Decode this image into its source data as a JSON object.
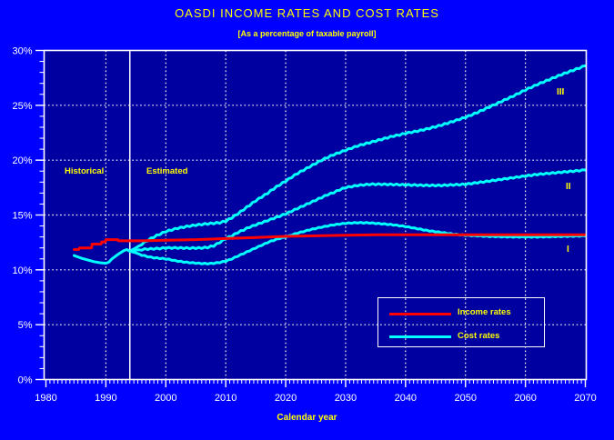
{
  "title": "OASDI  INCOME RATES AND COST  RATES",
  "subtitle": "[As a  percentage of taxable payroll]",
  "xlabel": "Calendar year",
  "annotations": {
    "historical": "Historical",
    "estimated": "Estimated",
    "boundary_year": 1994,
    "alt1": "I",
    "alt2": "II",
    "alt3": "III"
  },
  "legend": {
    "income": "Income rates",
    "cost": "Cost rates"
  },
  "colors": {
    "background": "#0000FF",
    "plot_bg": "#0000A0",
    "grid": "#FFFFFF",
    "axis": "#FFFFFF",
    "tick_text": "#FFFFFF",
    "accent_text": "#FFFF00",
    "income": "#FF0000",
    "cost": "#00FFFF"
  },
  "chart_data": {
    "type": "line",
    "title": "OASDI  INCOME RATES AND COST  RATES",
    "subtitle": "[As a  percentage of taxable payroll]",
    "xlabel": "Calendar year",
    "ylabel": "",
    "xlim": [
      1980,
      2070
    ],
    "ylim": [
      0,
      30
    ],
    "grid": true,
    "legend_position": "lower-right-inside",
    "x_ticks": [
      1980,
      1990,
      2000,
      2010,
      2020,
      2030,
      2040,
      2050,
      2060,
      2070
    ],
    "x_tick_labels": [
      "1980",
      "1990",
      "2000",
      "2010",
      "2020",
      "2030",
      "2040",
      "2050",
      "2060",
      "2070"
    ],
    "x_minor_step": 0.6667,
    "y_ticks": [
      0,
      5,
      10,
      15,
      20,
      25,
      30
    ],
    "y_tick_labels": [
      "0%",
      "5%",
      "10%",
      "15%",
      "20%",
      "25%",
      "30%"
    ],
    "y_minor_step": 1,
    "boundary_year": 1994,
    "series": [
      {
        "id": "cost-historical",
        "name": "Cost rates (historical)",
        "color": "cost",
        "width": 3,
        "noise": 0,
        "points": [
          [
            1984.7,
            11.3
          ],
          [
            1986,
            11.05
          ],
          [
            1987,
            10.9
          ],
          [
            1988,
            10.75
          ],
          [
            1989,
            10.65
          ],
          [
            1990,
            10.6
          ],
          [
            1990.5,
            10.7
          ],
          [
            1991,
            11.0
          ],
          [
            1992,
            11.4
          ],
          [
            1993,
            11.75
          ],
          [
            1993.5,
            11.85
          ],
          [
            1994,
            11.7
          ]
        ]
      },
      {
        "id": "cost-alt-1",
        "name": "Cost rates — Alternative I",
        "color": "cost",
        "width": 3,
        "noise": 0.035,
        "points": [
          [
            1994,
            11.7
          ],
          [
            1995,
            11.55
          ],
          [
            1996,
            11.35
          ],
          [
            1997,
            11.2
          ],
          [
            1998,
            11.1
          ],
          [
            1999,
            11.05
          ],
          [
            2000,
            11.0
          ],
          [
            2001,
            10.9
          ],
          [
            2002,
            10.8
          ],
          [
            2003,
            10.72
          ],
          [
            2004,
            10.66
          ],
          [
            2005,
            10.62
          ],
          [
            2006,
            10.58
          ],
          [
            2007,
            10.57
          ],
          [
            2008,
            10.6
          ],
          [
            2009,
            10.68
          ],
          [
            2010,
            10.8
          ],
          [
            2011,
            11.0
          ],
          [
            2012,
            11.25
          ],
          [
            2013,
            11.5
          ],
          [
            2014,
            11.75
          ],
          [
            2015,
            12.0
          ],
          [
            2016,
            12.25
          ],
          [
            2017,
            12.5
          ],
          [
            2018,
            12.7
          ],
          [
            2019,
            12.87
          ],
          [
            2020,
            13.0
          ],
          [
            2022,
            13.35
          ],
          [
            2024,
            13.65
          ],
          [
            2026,
            13.9
          ],
          [
            2028,
            14.1
          ],
          [
            2030,
            14.25
          ],
          [
            2032,
            14.3
          ],
          [
            2034,
            14.28
          ],
          [
            2036,
            14.2
          ],
          [
            2038,
            14.1
          ],
          [
            2040,
            13.95
          ],
          [
            2042,
            13.75
          ],
          [
            2044,
            13.55
          ],
          [
            2046,
            13.4
          ],
          [
            2048,
            13.25
          ],
          [
            2050,
            13.15
          ],
          [
            2052,
            13.1
          ],
          [
            2054,
            13.05
          ],
          [
            2058,
            13.0
          ],
          [
            2062,
            13.0
          ],
          [
            2066,
            13.05
          ],
          [
            2070,
            13.1
          ]
        ]
      },
      {
        "id": "cost-alt-2",
        "name": "Cost rates — Alternative II",
        "color": "cost",
        "width": 3,
        "noise": 0.055,
        "points": [
          [
            1994,
            11.7
          ],
          [
            1995,
            11.8
          ],
          [
            1996,
            11.85
          ],
          [
            1997,
            11.9
          ],
          [
            1998,
            11.92
          ],
          [
            1999,
            11.95
          ],
          [
            2000,
            12.0
          ],
          [
            2002,
            12.0
          ],
          [
            2004,
            11.98
          ],
          [
            2006,
            12.0
          ],
          [
            2007,
            12.05
          ],
          [
            2008,
            12.2
          ],
          [
            2009,
            12.5
          ],
          [
            2010,
            12.85
          ],
          [
            2011,
            13.1
          ],
          [
            2012,
            13.4
          ],
          [
            2013,
            13.65
          ],
          [
            2014,
            13.9
          ],
          [
            2015,
            14.1
          ],
          [
            2016,
            14.3
          ],
          [
            2017,
            14.5
          ],
          [
            2018,
            14.7
          ],
          [
            2019,
            14.9
          ],
          [
            2020,
            15.1
          ],
          [
            2021,
            15.35
          ],
          [
            2022,
            15.6
          ],
          [
            2023,
            15.85
          ],
          [
            2024,
            16.1
          ],
          [
            2025,
            16.35
          ],
          [
            2026,
            16.6
          ],
          [
            2027,
            16.85
          ],
          [
            2028,
            17.05
          ],
          [
            2029,
            17.3
          ],
          [
            2030,
            17.5
          ],
          [
            2031,
            17.6
          ],
          [
            2032,
            17.7
          ],
          [
            2033,
            17.75
          ],
          [
            2034,
            17.8
          ],
          [
            2036,
            17.8
          ],
          [
            2038,
            17.78
          ],
          [
            2040,
            17.75
          ],
          [
            2042,
            17.72
          ],
          [
            2044,
            17.7
          ],
          [
            2046,
            17.7
          ],
          [
            2048,
            17.75
          ],
          [
            2050,
            17.8
          ],
          [
            2052,
            17.95
          ],
          [
            2054,
            18.1
          ],
          [
            2056,
            18.25
          ],
          [
            2058,
            18.4
          ],
          [
            2060,
            18.55
          ],
          [
            2062,
            18.7
          ],
          [
            2064,
            18.8
          ],
          [
            2066,
            18.9
          ],
          [
            2068,
            19.0
          ],
          [
            2070,
            19.1
          ]
        ]
      },
      {
        "id": "cost-alt-3",
        "name": "Cost rates — Alternative III",
        "color": "cost",
        "width": 3,
        "noise": 0.06,
        "points": [
          [
            1994,
            11.7
          ],
          [
            1995,
            12.0
          ],
          [
            1996,
            12.35
          ],
          [
            1997,
            12.7
          ],
          [
            1998,
            13.0
          ],
          [
            1999,
            13.25
          ],
          [
            2000,
            13.5
          ],
          [
            2001,
            13.65
          ],
          [
            2002,
            13.8
          ],
          [
            2003,
            13.9
          ],
          [
            2004,
            14.0
          ],
          [
            2005,
            14.08
          ],
          [
            2006,
            14.15
          ],
          [
            2007,
            14.2
          ],
          [
            2008,
            14.25
          ],
          [
            2009,
            14.3
          ],
          [
            2010,
            14.45
          ],
          [
            2011,
            14.75
          ],
          [
            2012,
            15.1
          ],
          [
            2013,
            15.5
          ],
          [
            2014,
            15.9
          ],
          [
            2015,
            16.3
          ],
          [
            2016,
            16.65
          ],
          [
            2017,
            17.0
          ],
          [
            2018,
            17.4
          ],
          [
            2019,
            17.75
          ],
          [
            2020,
            18.1
          ],
          [
            2021,
            18.45
          ],
          [
            2022,
            18.8
          ],
          [
            2023,
            19.1
          ],
          [
            2024,
            19.4
          ],
          [
            2025,
            19.7
          ],
          [
            2026,
            20.0
          ],
          [
            2027,
            20.25
          ],
          [
            2028,
            20.5
          ],
          [
            2029,
            20.7
          ],
          [
            2030,
            20.9
          ],
          [
            2031,
            21.1
          ],
          [
            2032,
            21.3
          ],
          [
            2033,
            21.45
          ],
          [
            2034,
            21.6
          ],
          [
            2035,
            21.75
          ],
          [
            2036,
            21.9
          ],
          [
            2037,
            22.05
          ],
          [
            2038,
            22.2
          ],
          [
            2039,
            22.3
          ],
          [
            2040,
            22.45
          ],
          [
            2042,
            22.65
          ],
          [
            2044,
            22.9
          ],
          [
            2046,
            23.2
          ],
          [
            2048,
            23.55
          ],
          [
            2050,
            23.9
          ],
          [
            2052,
            24.35
          ],
          [
            2054,
            24.85
          ],
          [
            2056,
            25.35
          ],
          [
            2058,
            25.85
          ],
          [
            2060,
            26.4
          ],
          [
            2062,
            26.9
          ],
          [
            2064,
            27.35
          ],
          [
            2066,
            27.8
          ],
          [
            2068,
            28.2
          ],
          [
            2070,
            28.6
          ]
        ]
      },
      {
        "id": "income",
        "name": "Income rates",
        "color": "income",
        "width": 3,
        "noise": 0,
        "points": [
          [
            1984.7,
            11.85
          ],
          [
            1985.5,
            11.85
          ],
          [
            1985.6,
            12.0
          ],
          [
            1987.6,
            12.0
          ],
          [
            1987.7,
            12.35
          ],
          [
            1989.2,
            12.35
          ],
          [
            1989.3,
            12.55
          ],
          [
            1989.9,
            12.55
          ],
          [
            1990,
            12.75
          ],
          [
            1992,
            12.75
          ],
          [
            1992.1,
            12.65
          ],
          [
            1996,
            12.65
          ],
          [
            2000,
            12.7
          ],
          [
            2005,
            12.75
          ],
          [
            2010,
            12.85
          ],
          [
            2015,
            12.95
          ],
          [
            2020,
            13.05
          ],
          [
            2025,
            13.1
          ],
          [
            2030,
            13.15
          ],
          [
            2035,
            13.2
          ],
          [
            2070,
            13.2
          ]
        ]
      }
    ]
  }
}
